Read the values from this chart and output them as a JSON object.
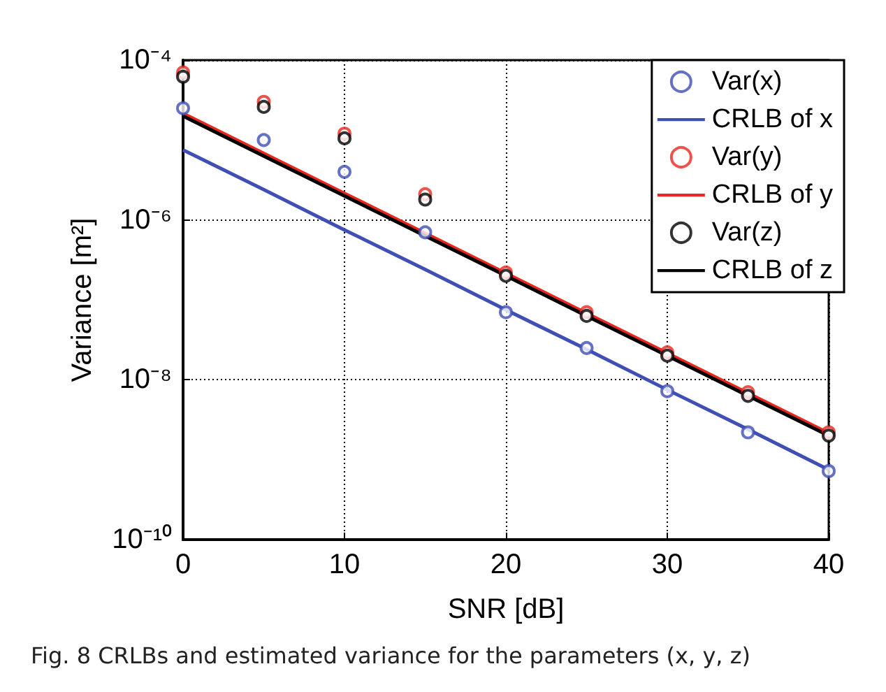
{
  "chart_data": {
    "type": "scatter",
    "xlabel": "SNR [dB]",
    "ylabel": "Variance [m²]",
    "log": "y",
    "x": [
      0,
      5,
      10,
      15,
      20,
      25,
      30,
      35,
      40
    ],
    "xlim": [
      0,
      40
    ],
    "xticks": [
      0,
      10,
      20,
      30,
      40
    ],
    "ylim": [
      1e-10,
      0.0001
    ],
    "yticks": [
      {
        "value": 1e-10,
        "label": "10⁻¹⁰"
      },
      {
        "value": 1e-08,
        "label": "10⁻⁸"
      },
      {
        "value": 1e-06,
        "label": "10⁻⁶"
      },
      {
        "value": 0.0001,
        "label": "10⁻⁴"
      }
    ],
    "grid": true,
    "legend": "top right",
    "marker": "circle",
    "series": [
      {
        "name": "Var(x)",
        "color": "#3f4fb5",
        "values": [
          2.5e-05,
          1e-05,
          4e-06,
          7e-07,
          7e-08,
          2.5e-08,
          7.2e-09,
          2.2e-09,
          7.2e-10
        ]
      },
      {
        "name": "CRLB of x",
        "type": "line",
        "marker": "none",
        "color": "#3f4fb5",
        "values": [
          7.5e-06,
          2.4e-06,
          7.5e-07,
          2.4e-07,
          7.5e-08,
          2.4e-08,
          7.5e-09,
          2.4e-09,
          7.5e-10
        ]
      },
      {
        "name": "Var(y)",
        "color": "#e8281e",
        "values": [
          7e-05,
          3e-05,
          1.2e-05,
          2.1e-06,
          2.2e-07,
          7e-08,
          2.2e-08,
          7e-09,
          2.2e-09
        ]
      },
      {
        "name": "CRLB of y",
        "type": "line",
        "marker": "none",
        "color": "#e8281e",
        "values": [
          2.15e-05,
          6.8e-06,
          2.15e-06,
          6.8e-07,
          2.15e-07,
          6.8e-08,
          2.15e-08,
          6.8e-09,
          2.15e-09
        ]
      },
      {
        "name": "Var(z)",
        "color": "#000000",
        "values": [
          6.2e-05,
          2.6e-05,
          1.05e-05,
          1.8e-06,
          2e-07,
          6.3e-08,
          2e-08,
          6.3e-09,
          2e-09
        ]
      },
      {
        "name": "CRLB of z",
        "type": "line",
        "marker": "none",
        "color": "#000000",
        "values": [
          2e-05,
          6.3e-06,
          2e-06,
          6.3e-07,
          2e-07,
          6.3e-08,
          2e-08,
          6.3e-09,
          2e-09
        ]
      }
    ],
    "annotations": [
      "Fig. 8 CRLBs and estimated variance for the parameters (x, y, z)"
    ]
  }
}
